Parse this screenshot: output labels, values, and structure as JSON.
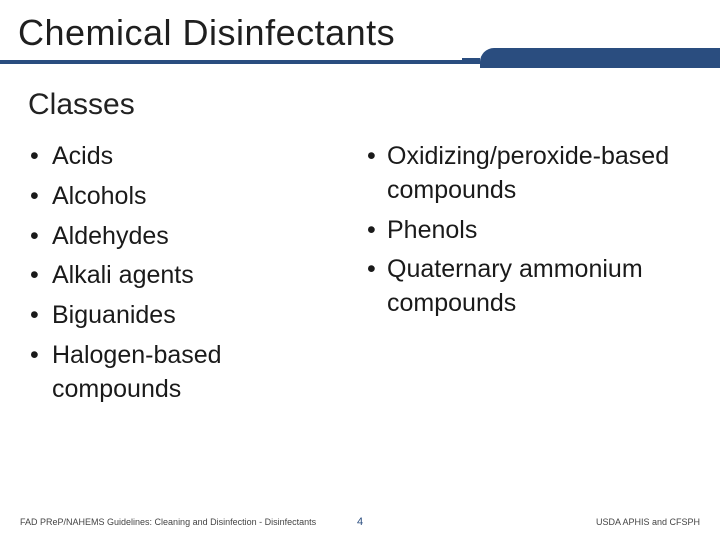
{
  "title": "Chemical Disinfectants",
  "subtitle": "Classes",
  "colors": {
    "accent": "#2a4d7f",
    "text": "#1a1a1a",
    "background": "#ffffff"
  },
  "left_list": [
    "Acids",
    "Alcohols",
    "Aldehydes",
    "Alkali agents",
    "Biguanides",
    "Halogen-based compounds"
  ],
  "right_list": [
    "Oxidizing/peroxide-based compounds",
    "Phenols",
    "Quaternary ammonium compounds"
  ],
  "footer": {
    "left": "FAD PReP/NAHEMS Guidelines: Cleaning and Disinfection - Disinfectants",
    "page": "4",
    "right": "USDA APHIS and CFSPH"
  }
}
